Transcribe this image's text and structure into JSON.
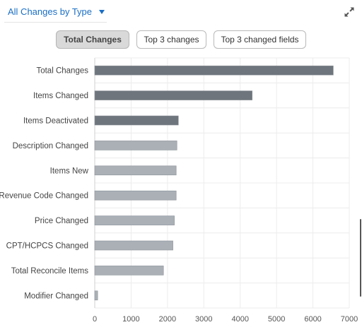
{
  "header": {
    "title": "All Changes by Type",
    "dropdown_icon": "caret-down-icon",
    "expand_icon": "expand-arrows-icon"
  },
  "tabs": [
    {
      "label": "Total Changes",
      "active": true
    },
    {
      "label": "Top 3 changes",
      "active": false
    },
    {
      "label": "Top 3 changed fields",
      "active": false
    }
  ],
  "colors": {
    "title": "#1a6fc4",
    "bar_dark": "#6e757c",
    "bar_light": "#aab0b6",
    "grid": "#ececec"
  },
  "chart_data": {
    "type": "bar",
    "orientation": "horizontal",
    "title": "",
    "xlabel": "",
    "ylabel": "",
    "xlim": [
      0,
      7000
    ],
    "grid": true,
    "xticks": [
      "0",
      "1000",
      "2000",
      "3000",
      "4000",
      "5000",
      "6000",
      "7000"
    ],
    "categories": [
      "Total Changes",
      "Items Changed",
      "Items Deactivated",
      "Description Changed",
      "Items New",
      "Revenue Code Changed",
      "Price Changed",
      "CPT/HCPCS Changed",
      "Total Reconcile Items",
      "Modifier Changed"
    ],
    "values": [
      6560,
      4330,
      2300,
      2260,
      2240,
      2240,
      2190,
      2150,
      1890,
      80
    ],
    "bar_shade": [
      "dark",
      "dark",
      "dark",
      "light",
      "light",
      "light",
      "light",
      "light",
      "light",
      "light"
    ]
  }
}
